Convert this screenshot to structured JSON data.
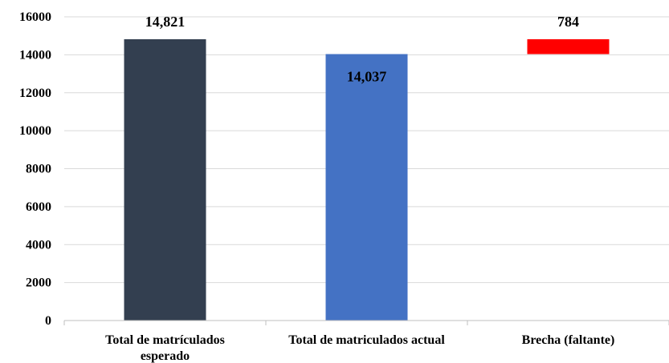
{
  "chart_data": {
    "type": "bar",
    "subtype": "waterfall",
    "categories": [
      "Total de matrículados esperado",
      "Total de matriculados actual",
      "Brecha (faltante)"
    ],
    "category_label_lines": [
      [
        "Total de matrículados",
        "esperado"
      ],
      [
        "Total de matriculados actual"
      ],
      [
        "Brecha (faltante)"
      ]
    ],
    "bars": [
      {
        "base": 0,
        "value": 14821,
        "label": "14,821",
        "color": "#333f50",
        "label_position": "above"
      },
      {
        "base": 0,
        "value": 14037,
        "label": "14,037",
        "color": "#4472c4",
        "label_position": "inside-top"
      },
      {
        "base": 14037,
        "value": 784,
        "label": "784",
        "color": "#ff0000",
        "label_position": "above"
      }
    ],
    "y_ticks": [
      "0",
      "2000",
      "4000",
      "6000",
      "8000",
      "10000",
      "12000",
      "14000",
      "16000"
    ],
    "ylim": [
      0,
      16000
    ],
    "grid": true,
    "legend": "none",
    "title": "",
    "xlabel": "",
    "ylabel": ""
  }
}
